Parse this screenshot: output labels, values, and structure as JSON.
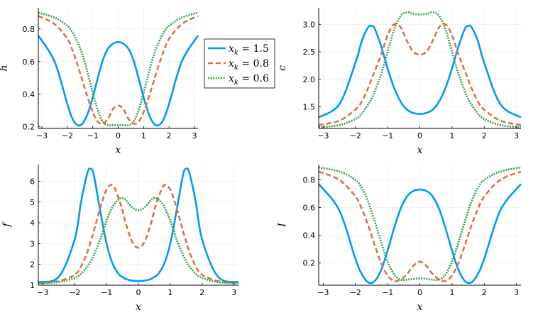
{
  "chart_data": [
    {
      "type": "line",
      "id": "h",
      "xlabel": "x",
      "ylabel": "h",
      "xlim": [
        -3.14,
        3.14
      ],
      "ylim": [
        0.19,
        0.93
      ],
      "xticks": [
        -3,
        -2,
        -1,
        0,
        1,
        2,
        3
      ],
      "yticks": [
        0.2,
        0.4,
        0.6,
        0.8
      ],
      "ytick_labels": [
        "0.2",
        "0.4",
        "0.6",
        "0.8"
      ],
      "x": [
        -3.14,
        -2.5,
        -2.0,
        -1.8,
        -1.6,
        -1.4,
        -1.2,
        -1.0,
        -0.8,
        -0.6,
        -0.4,
        -0.2,
        0.0,
        0.2,
        0.4,
        0.6,
        0.8,
        1.0,
        1.2,
        1.4,
        1.6,
        1.8,
        2.0,
        2.5,
        3.14
      ],
      "series": [
        {
          "name": "x_k = 1.5",
          "values": [
            0.76,
            0.6,
            0.34,
            0.25,
            0.21,
            0.22,
            0.28,
            0.38,
            0.5,
            0.61,
            0.68,
            0.71,
            0.72,
            0.71,
            0.68,
            0.61,
            0.5,
            0.38,
            0.28,
            0.22,
            0.21,
            0.25,
            0.34,
            0.6,
            0.76
          ]
        },
        {
          "name": "x_k = 0.8",
          "values": [
            0.88,
            0.83,
            0.74,
            0.67,
            0.58,
            0.48,
            0.38,
            0.29,
            0.23,
            0.22,
            0.25,
            0.31,
            0.33,
            0.31,
            0.25,
            0.22,
            0.23,
            0.29,
            0.38,
            0.48,
            0.58,
            0.67,
            0.74,
            0.83,
            0.88
          ]
        },
        {
          "name": "x_k = 0.6",
          "values": [
            0.9,
            0.87,
            0.82,
            0.78,
            0.72,
            0.64,
            0.53,
            0.41,
            0.3,
            0.23,
            0.21,
            0.21,
            0.21,
            0.21,
            0.21,
            0.23,
            0.3,
            0.41,
            0.53,
            0.64,
            0.72,
            0.78,
            0.82,
            0.87,
            0.9
          ]
        }
      ]
    },
    {
      "type": "line",
      "id": "c",
      "xlabel": "x",
      "ylabel": "c",
      "xlim": [
        -3.14,
        3.14
      ],
      "ylim": [
        1.11,
        3.3
      ],
      "xticks": [
        -3,
        -2,
        -1,
        0,
        1,
        2,
        3
      ],
      "yticks": [
        1.5,
        2.0,
        2.5,
        3.0
      ],
      "ytick_labels": [
        "1.5",
        "2.0",
        "2.5",
        "3.0"
      ],
      "x": [
        -3.14,
        -2.5,
        -2.0,
        -1.8,
        -1.6,
        -1.5,
        -1.4,
        -1.2,
        -1.0,
        -0.8,
        -0.6,
        -0.4,
        -0.2,
        0.0,
        0.2,
        0.4,
        0.6,
        0.8,
        1.0,
        1.2,
        1.4,
        1.5,
        1.6,
        1.8,
        2.0,
        2.5,
        3.14
      ],
      "series": [
        {
          "name": "x_k = 1.5",
          "values": [
            1.31,
            1.55,
            2.3,
            2.7,
            2.95,
            2.97,
            2.92,
            2.6,
            2.2,
            1.85,
            1.6,
            1.45,
            1.39,
            1.37,
            1.39,
            1.45,
            1.6,
            1.85,
            2.2,
            2.6,
            2.92,
            2.97,
            2.95,
            2.7,
            2.3,
            1.55,
            1.31
          ]
        },
        {
          "name": "x_k = 0.8",
          "values": [
            1.17,
            1.25,
            1.45,
            1.6,
            1.85,
            2.0,
            2.15,
            2.45,
            2.8,
            3.0,
            2.95,
            2.7,
            2.5,
            2.45,
            2.5,
            2.7,
            2.95,
            3.0,
            2.8,
            2.45,
            2.15,
            2.0,
            1.85,
            1.6,
            1.45,
            1.25,
            1.17
          ]
        },
        {
          "name": "x_k = 0.6",
          "values": [
            1.13,
            1.17,
            1.28,
            1.38,
            1.55,
            1.65,
            1.78,
            2.1,
            2.5,
            2.9,
            3.15,
            3.22,
            3.19,
            3.18,
            3.19,
            3.22,
            3.15,
            2.9,
            2.5,
            2.1,
            1.78,
            1.65,
            1.55,
            1.38,
            1.28,
            1.17,
            1.13
          ]
        }
      ]
    },
    {
      "type": "line",
      "id": "f",
      "xlabel": "x",
      "ylabel": "f",
      "xlim": [
        -3.14,
        3.14
      ],
      "ylim": [
        1.0,
        6.8
      ],
      "xticks": [
        -3,
        -2,
        -1,
        0,
        1,
        2,
        3
      ],
      "yticks": [
        1,
        2,
        3,
        4,
        5,
        6
      ],
      "ytick_labels": [
        "1",
        "2",
        "3",
        "4",
        "5",
        "6"
      ],
      "x": [
        -3.14,
        -2.5,
        -2.0,
        -1.8,
        -1.6,
        -1.5,
        -1.4,
        -1.2,
        -1.0,
        -0.8,
        -0.6,
        -0.5,
        -0.4,
        -0.2,
        0.0,
        0.2,
        0.4,
        0.5,
        0.6,
        0.8,
        1.0,
        1.2,
        1.4,
        1.5,
        1.6,
        1.8,
        2.0,
        2.5,
        3.14
      ],
      "series": [
        {
          "name": "x_k = 1.5",
          "values": [
            1.15,
            1.4,
            3.2,
            5.0,
            6.4,
            6.6,
            6.3,
            4.6,
            3.0,
            2.0,
            1.5,
            1.4,
            1.3,
            1.22,
            1.2,
            1.22,
            1.3,
            1.4,
            1.5,
            2.0,
            3.0,
            4.6,
            6.3,
            6.6,
            6.4,
            5.0,
            3.2,
            1.4,
            1.15
          ]
        },
        {
          "name": "x_k = 0.8",
          "values": [
            1.1,
            1.2,
            1.5,
            1.9,
            2.6,
            3.1,
            3.6,
            4.7,
            5.6,
            5.8,
            5.1,
            4.6,
            4.0,
            3.1,
            2.8,
            3.1,
            4.0,
            4.6,
            5.1,
            5.8,
            5.6,
            4.7,
            3.6,
            3.1,
            2.6,
            1.9,
            1.5,
            1.2,
            1.1
          ]
        },
        {
          "name": "x_k = 0.6",
          "values": [
            1.1,
            1.15,
            1.35,
            1.55,
            1.9,
            2.15,
            2.45,
            3.2,
            4.1,
            4.8,
            5.15,
            5.2,
            5.1,
            4.75,
            4.6,
            4.75,
            5.1,
            5.2,
            5.15,
            4.8,
            4.1,
            3.2,
            2.45,
            2.15,
            1.9,
            1.55,
            1.35,
            1.15,
            1.1
          ]
        }
      ]
    },
    {
      "type": "line",
      "id": "I",
      "xlabel": "x",
      "ylabel": "I",
      "xlim": [
        -3.14,
        3.14
      ],
      "ylim": [
        0.04,
        0.91
      ],
      "xticks": [
        -3,
        -2,
        -1,
        0,
        1,
        2,
        3
      ],
      "yticks": [
        0.2,
        0.4,
        0.6,
        0.8
      ],
      "ytick_labels": [
        "0.2",
        "0.4",
        "0.6",
        "0.8"
      ],
      "x": [
        -3.14,
        -2.5,
        -2.0,
        -1.8,
        -1.6,
        -1.4,
        -1.2,
        -1.0,
        -0.8,
        -0.6,
        -0.4,
        -0.2,
        0.0,
        0.2,
        0.4,
        0.6,
        0.8,
        1.0,
        1.2,
        1.4,
        1.6,
        1.8,
        2.0,
        2.5,
        3.14
      ],
      "series": [
        {
          "name": "x_k = 1.5",
          "values": [
            0.77,
            0.58,
            0.23,
            0.12,
            0.06,
            0.07,
            0.15,
            0.29,
            0.45,
            0.59,
            0.68,
            0.72,
            0.73,
            0.72,
            0.68,
            0.59,
            0.45,
            0.29,
            0.15,
            0.07,
            0.06,
            0.12,
            0.23,
            0.58,
            0.77
          ]
        },
        {
          "name": "x_k = 0.8",
          "values": [
            0.86,
            0.8,
            0.68,
            0.59,
            0.47,
            0.33,
            0.2,
            0.11,
            0.07,
            0.08,
            0.12,
            0.18,
            0.21,
            0.18,
            0.12,
            0.08,
            0.07,
            0.11,
            0.2,
            0.33,
            0.47,
            0.59,
            0.68,
            0.8,
            0.86
          ]
        },
        {
          "name": "x_k = 0.6",
          "values": [
            0.89,
            0.86,
            0.8,
            0.74,
            0.64,
            0.5,
            0.35,
            0.21,
            0.12,
            0.08,
            0.08,
            0.085,
            0.09,
            0.085,
            0.08,
            0.08,
            0.12,
            0.21,
            0.35,
            0.5,
            0.64,
            0.74,
            0.8,
            0.86,
            0.89
          ]
        }
      ]
    }
  ],
  "legend": {
    "placement": "right of top-left panel",
    "entries": [
      {
        "label": "x_k = 1.5",
        "base": "x",
        "subscript": "k",
        "rest": " = 1.5",
        "color": "#009AFA",
        "style": "solid"
      },
      {
        "label": "x_k = 0.8",
        "base": "x",
        "subscript": "k",
        "rest": " = 0.8",
        "color": "#E26F46",
        "style": "dashed"
      },
      {
        "label": "x_k = 0.6",
        "base": "x",
        "subscript": "k",
        "rest": " = 0.6",
        "color": "#3EA44E",
        "style": "dotted"
      }
    ]
  }
}
